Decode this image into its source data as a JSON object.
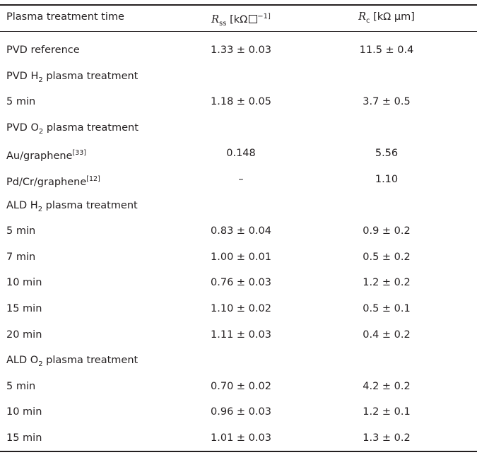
{
  "header": {
    "col0": "Plasma treatment time",
    "rss_symbol": "R",
    "rss_subscript": "ss",
    "rss_unit_open": "[kΩ",
    "rss_unit_close": "−1]",
    "rc_symbol": "R",
    "rc_subscript": "c",
    "rc_unit": "[kΩ μm]"
  },
  "rows": [
    {
      "label": "PVD reference",
      "rss": "1.33 ± 0.03",
      "rc": "11.5 ± 0.4"
    },
    {
      "label_pre": "PVD H",
      "label_sub": "2",
      "label_post": " plasma treatment",
      "rss": "",
      "rc": ""
    },
    {
      "label": "5 min",
      "rss": "1.18 ± 0.05",
      "rc": "3.7 ± 0.5"
    },
    {
      "label_pre": "PVD O",
      "label_sub": "2",
      "label_post": " plasma treatment",
      "rss": "",
      "rc": ""
    },
    {
      "label": "Au/graphene",
      "label_sup": "[33]",
      "rss": "0.148",
      "rc": "5.56"
    },
    {
      "label": "Pd/Cr/graphene",
      "label_sup": "[12]",
      "rss": "–",
      "rc": "1.10"
    },
    {
      "label_pre": "ALD H",
      "label_sub": "2",
      "label_post": " plasma treatment",
      "rss": "",
      "rc": ""
    },
    {
      "label": "5 min",
      "rss": "0.83 ± 0.04",
      "rc": "0.9 ± 0.2"
    },
    {
      "label": "7 min",
      "rss": "1.00 ± 0.01",
      "rc": "0.5 ± 0.2"
    },
    {
      "label": "10 min",
      "rss": "0.76 ± 0.03",
      "rc": "1.2 ± 0.2"
    },
    {
      "label": "15 min",
      "rss": "1.10 ± 0.02",
      "rc": "0.5 ± 0.1"
    },
    {
      "label": "20 min",
      "rss": "1.11 ± 0.03",
      "rc": "0.4 ± 0.2"
    },
    {
      "label_pre": "ALD O",
      "label_sub": "2",
      "label_post": " plasma treatment",
      "rss": "",
      "rc": ""
    },
    {
      "label": "5 min",
      "rss": "0.70 ± 0.02",
      "rc": "4.2 ± 0.2"
    },
    {
      "label": "10 min",
      "rss": "0.96 ± 0.03",
      "rc": "1.2 ± 0.1"
    },
    {
      "label": "15 min",
      "rss": "1.01 ± 0.03",
      "rc": "1.3 ± 0.2"
    }
  ]
}
